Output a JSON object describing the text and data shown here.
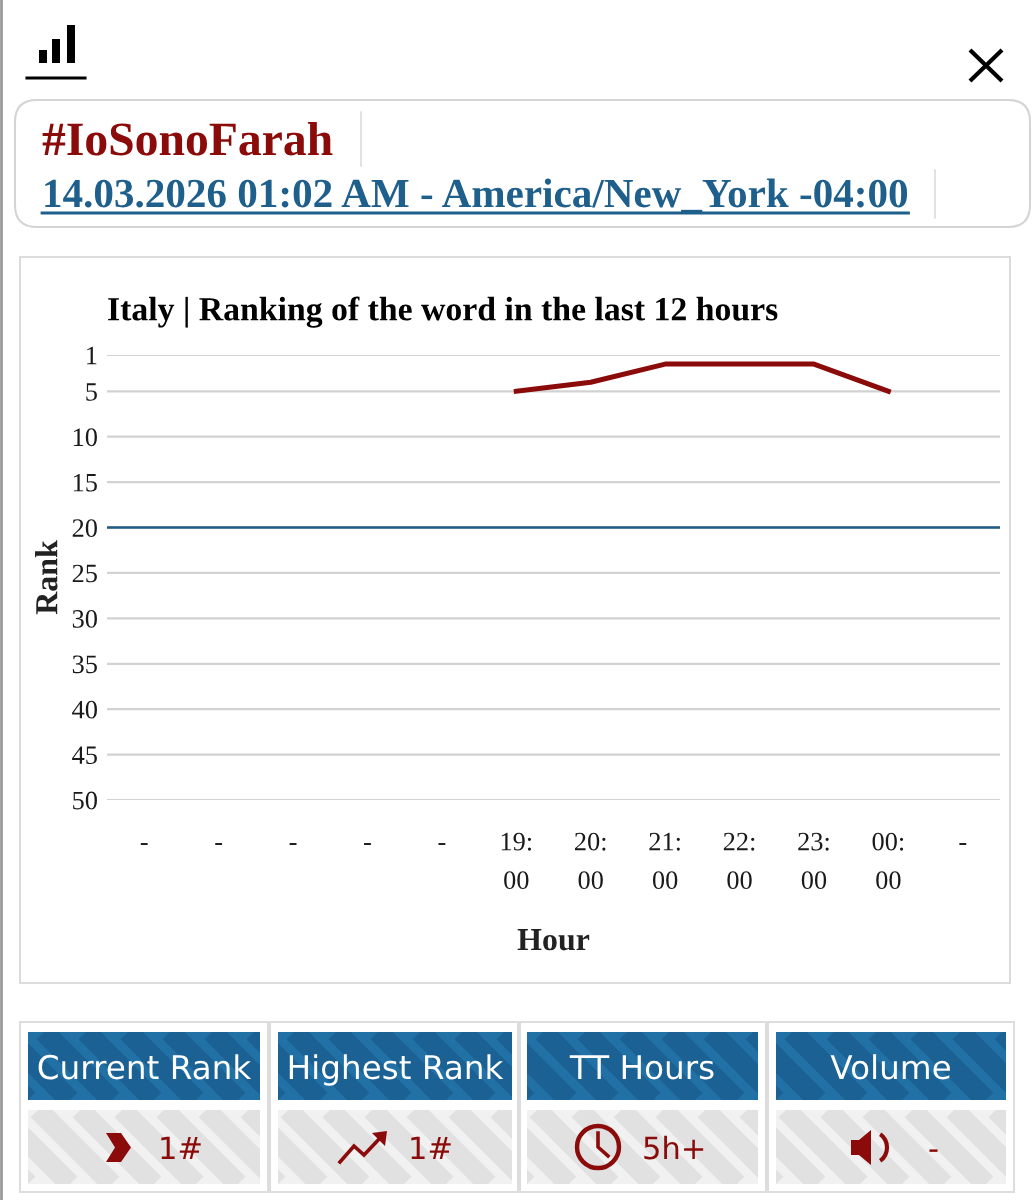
{
  "chart_data": {
    "type": "line",
    "title": "Italy | Ranking of the word in the last 12 hours",
    "xlabel": "Hour",
    "ylabel": "Rank",
    "categories": [
      "-",
      "-",
      "-",
      "-",
      "-",
      "19:\n00",
      "20:\n00",
      "21:\n00",
      "22:\n00",
      "23:\n00",
      "00:\n00",
      "-"
    ],
    "series": [
      {
        "color": "#8b0a0a",
        "values": [
          null,
          null,
          null,
          null,
          null,
          5,
          4,
          2,
          2,
          2,
          5,
          null
        ]
      }
    ],
    "ylim": [
      50,
      1
    ],
    "yticks": [
      1,
      5,
      10,
      15,
      20,
      25,
      30,
      35,
      40,
      45,
      50
    ],
    "grid": "y",
    "marker": "none",
    "line_style": "solid",
    "ref_lines": [
      {
        "axis": "y",
        "value": 20,
        "color": "#1f5a85"
      }
    ],
    "annotations": [
      "#IoSonoFarah",
      "14.03.2026 01:02 AM - America/New_York -04:00",
      "Current Rank",
      "1#",
      "Highest Rank",
      "1#",
      "TT Hours",
      "5h+",
      "Volume",
      "-"
    ]
  }
}
